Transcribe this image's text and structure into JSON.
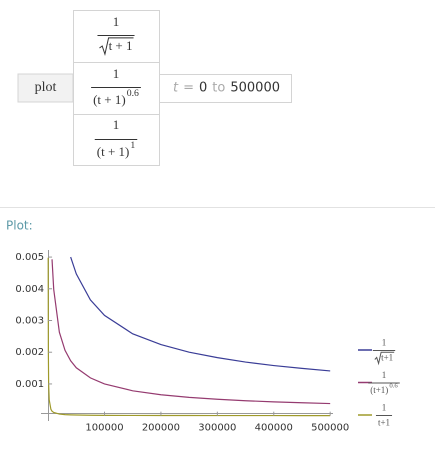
{
  "input": {
    "button": "plot",
    "formulas": [
      {
        "numerator": "1",
        "denominator": "t + 1",
        "root": true
      },
      {
        "numerator": "1",
        "denominator": "(t + 1)",
        "exponent": "0.6"
      },
      {
        "numerator": "1",
        "denominator": "(t + 1)",
        "exponent": "1"
      }
    ],
    "range": {
      "variable": "t",
      "equals": "=",
      "from": "0",
      "to_word": "to",
      "to": "500000"
    }
  },
  "result_label": "Plot:",
  "chart_data": {
    "type": "line",
    "x": [
      200,
      500,
      1000,
      2000,
      5000,
      7000,
      10000,
      20000,
      30000,
      40000,
      50000,
      75000,
      100000,
      150000,
      200000,
      250000,
      300000,
      350000,
      400000,
      450000,
      500000
    ],
    "series": [
      {
        "label": {
          "numerator": "1",
          "denominator": "t+1",
          "root": true
        },
        "color": "#3a3d97",
        "values": [
          null,
          null,
          null,
          null,
          null,
          null,
          null,
          null,
          null,
          0.005,
          0.00447,
          0.00365,
          0.00316,
          0.00258,
          0.00224,
          0.002,
          0.00183,
          0.00169,
          0.00158,
          0.00149,
          0.00141
        ]
      },
      {
        "label": {
          "numerator": "1",
          "denominator": "(t+1)",
          "exponent": "0.6"
        },
        "color": "#953b70",
        "values": [
          null,
          null,
          null,
          null,
          null,
          0.00493,
          0.00398,
          0.00263,
          0.00206,
          0.00173,
          0.00151,
          0.00119,
          0.001,
          0.000784,
          0.00066,
          0.000577,
          0.000517,
          0.000471,
          0.000435,
          0.000406,
          0.000381
        ]
      },
      {
        "label": {
          "numerator": "1",
          "denominator": "t+1"
        },
        "color": "#9f9a2a",
        "values": [
          0.00498,
          0.002,
          0.001,
          0.0005,
          0.0002,
          0.00014,
          0.0001,
          5e-05,
          3.3e-05,
          2.5e-05,
          2e-05,
          1.3e-05,
          1e-05,
          6.7e-06,
          5e-06,
          4e-06,
          3.3e-06,
          2.9e-06,
          2.5e-06,
          2.2e-06,
          2e-06
        ]
      }
    ],
    "xlim": [
      -9000,
      505000
    ],
    "ylim": [
      -0.0002,
      0.00516
    ],
    "xticks": [
      100000,
      200000,
      300000,
      400000,
      500000
    ],
    "yticks": [
      0.001,
      0.002,
      0.003,
      0.004,
      0.005
    ]
  }
}
